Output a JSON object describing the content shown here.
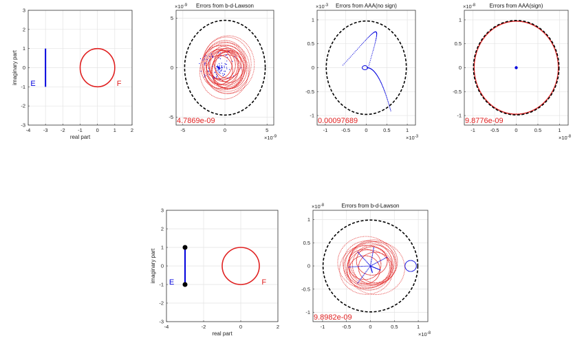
{
  "chart_data": [
    {
      "id": "domain-1",
      "type": "scatter",
      "title": "",
      "xlabel": "real part",
      "ylabel": "imaginary part",
      "xlim": [
        -4,
        2
      ],
      "ylim": [
        -3,
        3
      ],
      "xticks": [
        "-4",
        "-3",
        "-2",
        "-1",
        "0",
        "1",
        "2"
      ],
      "yticks": [
        "-3",
        "-2",
        "-1",
        "0",
        "1",
        "2",
        "3"
      ],
      "grid": true,
      "segment": {
        "x": -3,
        "y0": -1,
        "y1": 1,
        "color": "#0000dd"
      },
      "circle": {
        "cx": 0,
        "cy": 0,
        "r": 1,
        "color": "#e02020"
      },
      "labels": [
        {
          "text": "E",
          "x": -3.72,
          "y": -0.95,
          "color": "#0000dd"
        },
        {
          "text": "F",
          "x": 1.25,
          "y": -0.95,
          "color": "#e02020"
        }
      ]
    },
    {
      "id": "err-lawson-1",
      "type": "scatter",
      "title": "Errors from b-d-Lawson",
      "xlim": [
        -5.8,
        5.8
      ],
      "ylim": [
        -5.8,
        5.8
      ],
      "xticks": [
        "-5",
        "0",
        "5"
      ],
      "yticks": [
        "-5",
        "0",
        "5"
      ],
      "tick_values": [
        -5,
        0,
        5
      ],
      "exponent": "-9",
      "grid": true,
      "radius": 4.7869,
      "error_label": "4.7869e-09",
      "red_loops": 18,
      "blue_scatter": "center"
    },
    {
      "id": "err-aaa-nosign",
      "type": "scatter",
      "title": "Errors from AAA(no sign)",
      "xlim": [
        -1.2,
        1.2
      ],
      "ylim": [
        -1.2,
        1.2
      ],
      "xticks": [
        "-1",
        "-0.5",
        "0",
        "0.5",
        "1"
      ],
      "yticks": [
        "-1",
        "-0.5",
        "0",
        "0.5",
        "1"
      ],
      "tick_values": [
        -1,
        -0.5,
        0,
        0.5,
        1
      ],
      "exponent": "-3",
      "grid": true,
      "radius": 0.97689,
      "error_label": "0.00097689",
      "red_loops": 0,
      "blue_scatter": "curves"
    },
    {
      "id": "err-aaa-sign",
      "type": "scatter",
      "title": "Errors from AAA(sign)",
      "xlim": [
        -1.2,
        1.2
      ],
      "ylim": [
        -1.2,
        1.2
      ],
      "xticks": [
        "-1",
        "-0.5",
        "0",
        "0.5",
        "1"
      ],
      "yticks": [
        "-1",
        "-0.5",
        "0",
        "0.5",
        "1"
      ],
      "tick_values": [
        -1,
        -0.5,
        0,
        0.5,
        1
      ],
      "exponent": "-8",
      "grid": true,
      "radius": 0.98776,
      "error_label": "9.8776e-09",
      "red_loops": 1,
      "blue_scatter": "dot"
    },
    {
      "id": "domain-2",
      "type": "scatter",
      "title": "",
      "xlabel": "real part",
      "ylabel": "imaginary part",
      "xlim": [
        -4,
        2
      ],
      "ylim": [
        -3,
        3
      ],
      "xticks": [
        "-4",
        "-2",
        "0",
        "2"
      ],
      "yticks": [
        "-3",
        "-2",
        "-1",
        "0",
        "1",
        "2",
        "3"
      ],
      "grid": true,
      "segment": {
        "x": -3,
        "y0": -1,
        "y1": 1,
        "color": "#0000dd"
      },
      "endpoints": [
        {
          "x": -3,
          "y": 1
        },
        {
          "x": -3,
          "y": -1
        }
      ],
      "circle": {
        "cx": 0,
        "cy": 0,
        "r": 1,
        "color": "#e02020"
      },
      "labels": [
        {
          "text": "E",
          "x": -3.72,
          "y": -1.0,
          "color": "#0000dd"
        },
        {
          "text": "F",
          "x": 1.25,
          "y": -1.0,
          "color": "#e02020"
        }
      ]
    },
    {
      "id": "err-lawson-2",
      "type": "scatter",
      "title": "Errors from b-d-Lawson",
      "xlim": [
        -1.2,
        1.2
      ],
      "ylim": [
        -1.2,
        1.2
      ],
      "xticks": [
        "-1",
        "-0.5",
        "0",
        "0.5",
        "1"
      ],
      "yticks": [
        "-1",
        "-0.5",
        "0",
        "0.5",
        "1"
      ],
      "tick_values": [
        -1,
        -0.5,
        0,
        0.5,
        1
      ],
      "exponent": "-8",
      "grid": true,
      "radius": 0.98982,
      "error_label": "9.8982e-09",
      "red_loops": 14,
      "blue_scatter": "star"
    }
  ],
  "colors": {
    "error_points": "#e02020",
    "curve_points": "#0000dd",
    "ring": "#000000"
  }
}
